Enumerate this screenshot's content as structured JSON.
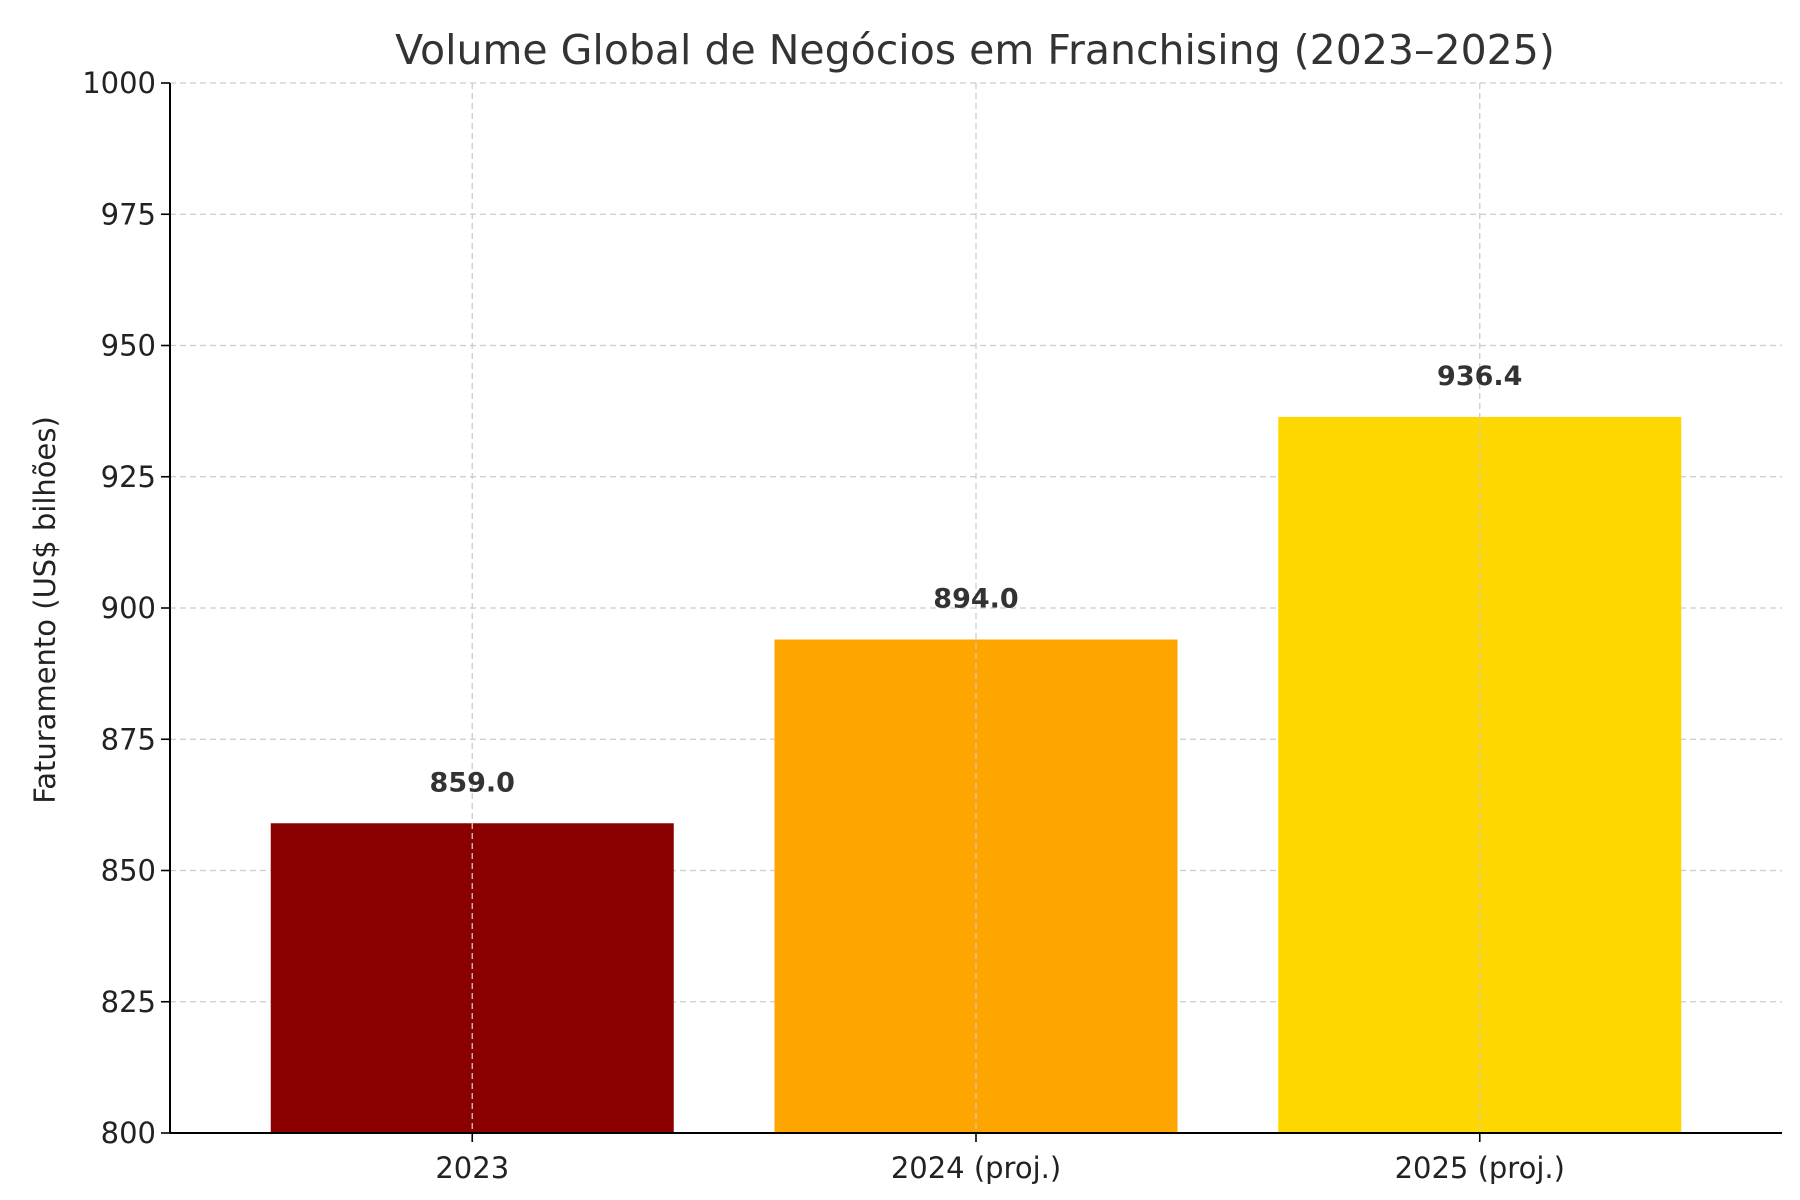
{
  "chart_data": {
    "type": "bar",
    "title": "Volume Global de Negócios em Franchising (2023–2025)",
    "xlabel": "",
    "ylabel": "Faturamento (US$ bilhões)",
    "categories": [
      "2023",
      "2024 (proj.)",
      "2025 (proj.)"
    ],
    "values": [
      859.0,
      894.0,
      936.4
    ],
    "value_labels": [
      "859.0",
      "894.0",
      "936.4"
    ],
    "bar_colors": [
      "#8B0000",
      "#FFA500",
      "#FFD700"
    ],
    "ylim": [
      800,
      1000
    ],
    "yticks": [
      800,
      825,
      850,
      875,
      900,
      925,
      950,
      975,
      1000
    ],
    "grid": true,
    "legend": "none"
  }
}
